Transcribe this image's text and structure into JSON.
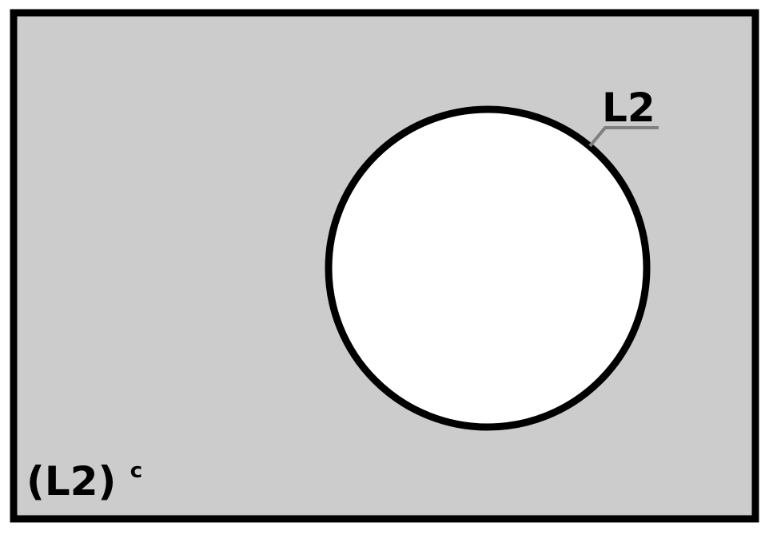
{
  "diagram": {
    "type": "venn",
    "set_label": "L2",
    "complement_label": {
      "base": "(L2)",
      "superscript": "c"
    },
    "colors": {
      "universe_fill": "#cccccc",
      "set_fill": "#ffffff",
      "outline": "#000000",
      "leader_line": "#808080"
    }
  }
}
